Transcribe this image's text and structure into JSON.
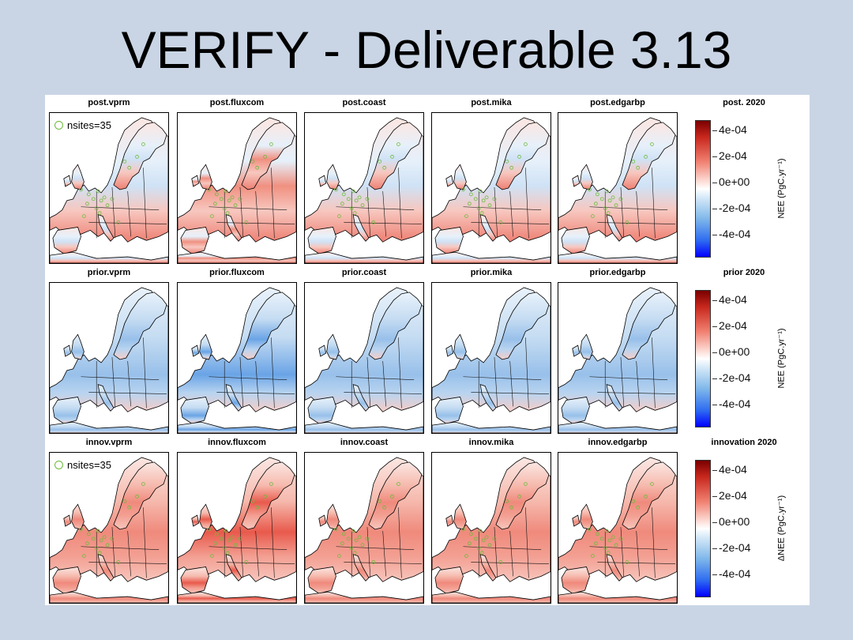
{
  "title": "VERIFY - Deliverable 3.13",
  "rows": [
    {
      "key": "post",
      "panels": [
        "post.vprm",
        "post.fluxcom",
        "post.coast",
        "post.mika",
        "post.edgarbp"
      ],
      "fields": [
        "mixed",
        "mixed-strong",
        "mixed",
        "mixed",
        "mixed"
      ],
      "show_sites": true,
      "legend": "nsites=35",
      "colorbar": {
        "title": "post. 2020",
        "ticks": [
          "4e-04",
          "2e-04",
          "0e+00",
          "-2e-04",
          "-4e-04"
        ],
        "label": "NEE (PgC.yr⁻¹)"
      }
    },
    {
      "key": "prior",
      "panels": [
        "prior.vprm",
        "prior.fluxcom",
        "prior.coast",
        "prior.mika",
        "prior.edgarbp"
      ],
      "fields": [
        "blue",
        "blue-strong",
        "blue",
        "blue",
        "blue"
      ],
      "show_sites": false,
      "legend": "",
      "colorbar": {
        "title": "prior 2020",
        "ticks": [
          "4e-04",
          "2e-04",
          "0e+00",
          "-2e-04",
          "-4e-04"
        ],
        "label": "NEE (PgC.yr⁻¹)"
      }
    },
    {
      "key": "innov",
      "panels": [
        "innov.vprm",
        "innov.fluxcom",
        "innov.coast",
        "innov.mika",
        "innov.edgarbp"
      ],
      "fields": [
        "red",
        "red-strong",
        "red",
        "red",
        "red"
      ],
      "show_sites": true,
      "legend": "nsites=35",
      "colorbar": {
        "title": "innovation 2020",
        "ticks": [
          "4e-04",
          "2e-04",
          "0e+00",
          "-2e-04",
          "-4e-04"
        ],
        "label": "ΔNEE (PgC.yr⁻¹)"
      }
    }
  ],
  "colors": {
    "site_marker": "#6cbb3c",
    "positive": "#e8463a",
    "negative": "#3a7ee8",
    "neutral": "#ffffff"
  }
}
